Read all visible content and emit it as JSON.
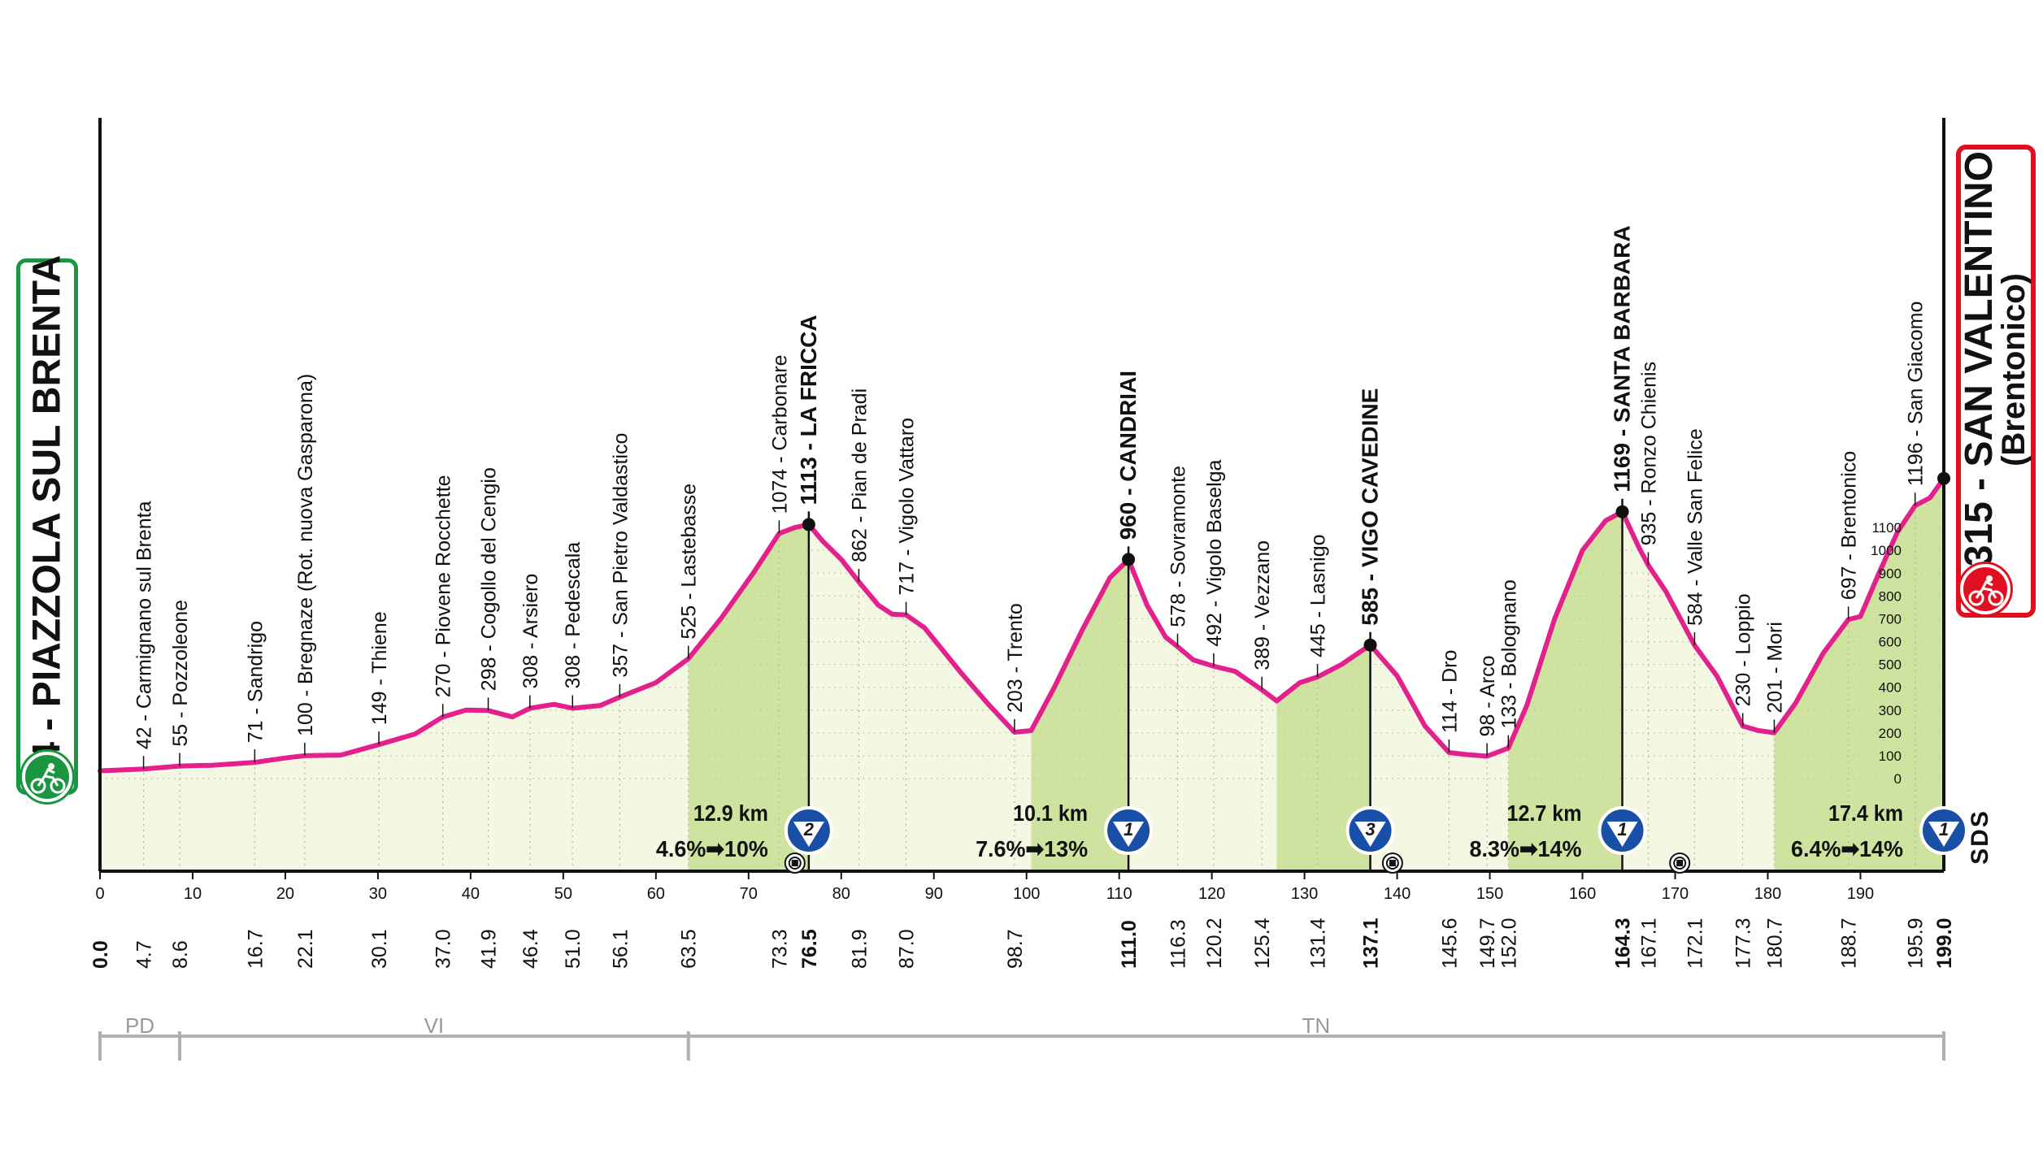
{
  "start": {
    "altitude": "34",
    "name": "PIAZZOLA SUL BRENTA",
    "label": "34 - PIAZZOLA SUL BRENTA",
    "icon": "cyclist-icon",
    "color": "#1a9641"
  },
  "finish": {
    "altitude": "1315",
    "name": "SAN VALENTINO",
    "label": "1315 - SAN VALENTINO",
    "sub": "(Brentonico)",
    "icon": "cyclist-icon",
    "color": "#e01020"
  },
  "sds_label": "SDS",
  "chart_data": {
    "type": "area",
    "x_unit": "km",
    "total_km": 199.0,
    "xlim": [
      0,
      199
    ],
    "ylim": [
      0,
      1315
    ],
    "x_ticks": [
      0,
      10,
      20,
      30,
      40,
      50,
      60,
      70,
      80,
      90,
      100,
      110,
      120,
      130,
      140,
      150,
      160,
      170,
      180,
      190
    ],
    "y_ticks": [
      0,
      100,
      200,
      300,
      400,
      500,
      600,
      700,
      800,
      900,
      1000,
      1100
    ],
    "profile": [
      [
        0,
        34
      ],
      [
        4.7,
        42
      ],
      [
        8.6,
        55
      ],
      [
        12,
        58
      ],
      [
        16.7,
        71
      ],
      [
        20,
        90
      ],
      [
        22.1,
        100
      ],
      [
        26,
        103
      ],
      [
        30.1,
        149
      ],
      [
        34,
        195
      ],
      [
        37,
        270
      ],
      [
        39.5,
        300
      ],
      [
        41.9,
        298
      ],
      [
        44.5,
        270
      ],
      [
        46.4,
        308
      ],
      [
        49,
        325
      ],
      [
        51,
        308
      ],
      [
        54,
        320
      ],
      [
        56.1,
        357
      ],
      [
        60,
        420
      ],
      [
        63.5,
        525
      ],
      [
        67,
        700
      ],
      [
        70.5,
        900
      ],
      [
        73.3,
        1074
      ],
      [
        75,
        1100
      ],
      [
        76.5,
        1113
      ],
      [
        78,
        1040
      ],
      [
        80,
        960
      ],
      [
        81.9,
        862
      ],
      [
        84,
        760
      ],
      [
        85.5,
        720
      ],
      [
        87,
        717
      ],
      [
        89,
        660
      ],
      [
        91,
        560
      ],
      [
        93,
        460
      ],
      [
        96,
        320
      ],
      [
        98.7,
        203
      ],
      [
        100.5,
        210
      ],
      [
        103,
        400
      ],
      [
        106,
        650
      ],
      [
        109,
        880
      ],
      [
        111,
        960
      ],
      [
        113,
        760
      ],
      [
        115,
        620
      ],
      [
        116.3,
        578
      ],
      [
        118,
        520
      ],
      [
        120.2,
        492
      ],
      [
        122.5,
        470
      ],
      [
        125.4,
        389
      ],
      [
        127,
        340
      ],
      [
        129.5,
        420
      ],
      [
        131.4,
        445
      ],
      [
        134,
        500
      ],
      [
        137.1,
        585
      ],
      [
        140,
        450
      ],
      [
        143,
        230
      ],
      [
        145.6,
        114
      ],
      [
        147.5,
        105
      ],
      [
        149.7,
        98
      ],
      [
        152,
        133
      ],
      [
        154,
        320
      ],
      [
        157,
        700
      ],
      [
        160,
        1000
      ],
      [
        162.5,
        1130
      ],
      [
        164.3,
        1169
      ],
      [
        166,
        1020
      ],
      [
        167.1,
        935
      ],
      [
        169,
        820
      ],
      [
        172.1,
        584
      ],
      [
        174.5,
        450
      ],
      [
        177.3,
        230
      ],
      [
        179,
        210
      ],
      [
        180.7,
        201
      ],
      [
        183,
        330
      ],
      [
        186,
        550
      ],
      [
        188.7,
        697
      ],
      [
        190,
        710
      ],
      [
        192,
        900
      ],
      [
        194,
        1080
      ],
      [
        195.9,
        1196
      ],
      [
        197.5,
        1230
      ],
      [
        199,
        1315
      ]
    ],
    "shaded_climbs": [
      [
        63.5,
        76.5
      ],
      [
        100.5,
        111.0
      ],
      [
        127.0,
        137.1
      ],
      [
        152.0,
        164.3
      ],
      [
        180.7,
        199.0
      ]
    ],
    "km_marks": [
      {
        "km": 0.0,
        "label": "0.0",
        "bold": true
      },
      {
        "km": 4.7,
        "label": "4.7"
      },
      {
        "km": 8.6,
        "label": "8.6"
      },
      {
        "km": 16.7,
        "label": "16.7"
      },
      {
        "km": 22.1,
        "label": "22.1"
      },
      {
        "km": 30.1,
        "label": "30.1"
      },
      {
        "km": 37.0,
        "label": "37.0"
      },
      {
        "km": 41.9,
        "label": "41.9"
      },
      {
        "km": 46.4,
        "label": "46.4"
      },
      {
        "km": 51.0,
        "label": "51.0"
      },
      {
        "km": 56.1,
        "label": "56.1"
      },
      {
        "km": 63.5,
        "label": "63.5"
      },
      {
        "km": 73.3,
        "label": "73.3"
      },
      {
        "km": 76.5,
        "label": "76.5",
        "bold": true
      },
      {
        "km": 81.9,
        "label": "81.9"
      },
      {
        "km": 87.0,
        "label": "87.0"
      },
      {
        "km": 98.7,
        "label": "98.7"
      },
      {
        "km": 111.0,
        "label": "111.0",
        "bold": true
      },
      {
        "km": 116.3,
        "label": "116.3"
      },
      {
        "km": 120.2,
        "label": "120.2"
      },
      {
        "km": 125.4,
        "label": "125.4"
      },
      {
        "km": 131.4,
        "label": "131.4"
      },
      {
        "km": 137.1,
        "label": "137.1",
        "bold": true
      },
      {
        "km": 145.6,
        "label": "145.6"
      },
      {
        "km": 149.7,
        "label": "149.7"
      },
      {
        "km": 152.0,
        "label": "152.0"
      },
      {
        "km": 164.3,
        "label": "164.3",
        "bold": true
      },
      {
        "km": 167.1,
        "label": "167.1"
      },
      {
        "km": 172.1,
        "label": "172.1"
      },
      {
        "km": 177.3,
        "label": "177.3"
      },
      {
        "km": 180.7,
        "label": "180.7"
      },
      {
        "km": 188.7,
        "label": "188.7"
      },
      {
        "km": 195.9,
        "label": "195.9"
      },
      {
        "km": 199.0,
        "label": "199.0",
        "bold": true
      }
    ],
    "places": [
      {
        "km": 4.7,
        "alt": 42,
        "label": "42 - Carmignano sul Brenta"
      },
      {
        "km": 8.6,
        "alt": 55,
        "label": "55 - Pozzoleone"
      },
      {
        "km": 16.7,
        "alt": 71,
        "label": "71 - Sandrigo"
      },
      {
        "km": 22.1,
        "alt": 100,
        "label": "100 - Bregnaze (Rot. nuova Gasparona)"
      },
      {
        "km": 30.1,
        "alt": 149,
        "label": "149 - Thiene"
      },
      {
        "km": 37.0,
        "alt": 270,
        "label": "270 - Piovene Rocchette"
      },
      {
        "km": 41.9,
        "alt": 298,
        "label": "298 - Cogollo del Cengio"
      },
      {
        "km": 46.4,
        "alt": 308,
        "label": "308 - Arsiero"
      },
      {
        "km": 51.0,
        "alt": 308,
        "label": "308 - Pedescala"
      },
      {
        "km": 56.1,
        "alt": 357,
        "label": "357 - San Pietro Valdastico"
      },
      {
        "km": 63.5,
        "alt": 525,
        "label": "525 - Lastebasse"
      },
      {
        "km": 73.3,
        "alt": 1074,
        "label": "1074 - Carbonare"
      },
      {
        "km": 76.5,
        "alt": 1113,
        "label": "1113 - LA FRICCA",
        "bold": true,
        "gpm": true
      },
      {
        "km": 81.9,
        "alt": 862,
        "label": "862 - Pian de Pradi"
      },
      {
        "km": 87.0,
        "alt": 717,
        "label": "717 - Vigolo Vattaro"
      },
      {
        "km": 98.7,
        "alt": 203,
        "label": "203 - Trento"
      },
      {
        "km": 111.0,
        "alt": 960,
        "label": "960 - CANDRIAI",
        "bold": true,
        "gpm": true
      },
      {
        "km": 116.3,
        "alt": 578,
        "label": "578 - Sovramonte"
      },
      {
        "km": 120.2,
        "alt": 492,
        "label": "492 - Vigolo Baselga"
      },
      {
        "km": 125.4,
        "alt": 389,
        "label": "389 - Vezzano"
      },
      {
        "km": 131.4,
        "alt": 445,
        "label": "445 - Lasnigo"
      },
      {
        "km": 137.1,
        "alt": 585,
        "label": "585 - VIGO CAVEDINE",
        "bold": true,
        "gpm": true
      },
      {
        "km": 145.6,
        "alt": 114,
        "label": "114 - Dro"
      },
      {
        "km": 149.7,
        "alt": 98,
        "label": "98 - Arco"
      },
      {
        "km": 152.0,
        "alt": 133,
        "label": "133 - Bolognano"
      },
      {
        "km": 164.3,
        "alt": 1169,
        "label": "1169 - SANTA BARBARA",
        "bold": true,
        "gpm": true
      },
      {
        "km": 167.1,
        "alt": 935,
        "label": "935 - Ronzo Chienis"
      },
      {
        "km": 172.1,
        "alt": 584,
        "label": "584 - Valle San Felice"
      },
      {
        "km": 177.3,
        "alt": 230,
        "label": "230 - Loppio"
      },
      {
        "km": 180.7,
        "alt": 201,
        "label": "201 - Mori"
      },
      {
        "km": 188.7,
        "alt": 697,
        "label": "697 - Brentonico"
      },
      {
        "km": 195.9,
        "alt": 1196,
        "label": "1196 - San Giacomo"
      }
    ],
    "climbs": [
      {
        "km": 76.5,
        "category": "2",
        "length": "12.9 km",
        "grade": "4.6%➡10%"
      },
      {
        "km": 111.0,
        "category": "1",
        "length": "10.1 km",
        "grade": "7.6%➡13%"
      },
      {
        "km": 137.1,
        "category": "3",
        "length": "",
        "grade": ""
      },
      {
        "km": 164.3,
        "category": "1",
        "length": "12.7 km",
        "grade": "8.3%➡14%"
      },
      {
        "km": 199.0,
        "category": "1",
        "length": "17.4 km",
        "grade": "6.4%➡14%"
      }
    ],
    "sprint_markers": [
      {
        "km": 75.0
      },
      {
        "km": 139.5
      },
      {
        "km": 170.5
      }
    ],
    "provinces": [
      {
        "from": 0,
        "to": 8.6,
        "label": "PD"
      },
      {
        "from": 8.6,
        "to": 63.5,
        "label": "VI"
      },
      {
        "from": 63.5,
        "to": 199,
        "label": "TN"
      }
    ],
    "colors": {
      "line": "#e3208c",
      "light_fill": "#f4f8e2",
      "climb_fill": "#cfe3a0",
      "gpm_blue": "#1a4fa8",
      "dot": "#111111"
    }
  }
}
